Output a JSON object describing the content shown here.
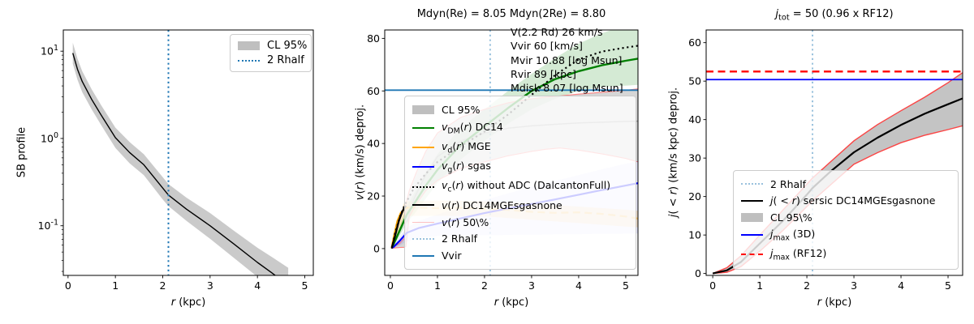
{
  "figure": {
    "background": "#ffffff"
  },
  "chart_data": [
    {
      "panel": "sb-profile-panel",
      "type": "line",
      "title": "",
      "xlabel": "*r* (kpc)",
      "ylabel": "SB profile",
      "xlim": [
        -0.1,
        5.18
      ],
      "ylim": [
        0.027,
        17.5
      ],
      "yscale": "log",
      "xticks": [
        0,
        1,
        2,
        3,
        4,
        5
      ],
      "yticks": [
        {
          "v": 10,
          "label": "10^{1}"
        },
        {
          "v": 1,
          "label": "10^{0}"
        },
        {
          "v": 0.1,
          "label": "10^{-1}"
        }
      ],
      "grid": false,
      "vlines": [
        {
          "name": "two-rhalf-line",
          "x": 2.12,
          "color": "#1f77b4",
          "dash": "dotted",
          "width": 2,
          "opacity": 1
        }
      ],
      "hlines": [],
      "bands": [
        {
          "name": "cl95-band",
          "color": "#8a8a8a",
          "opacity": 0.45,
          "x": [
            0.1,
            0.2,
            0.3,
            0.5,
            0.7,
            1.0,
            1.3,
            1.6,
            2.0,
            2.12,
            2.5,
            3.0,
            3.5,
            4.0,
            4.3,
            4.65
          ],
          "upper": [
            12.5,
            8.2,
            5.9,
            3.65,
            2.4,
            1.33,
            0.91,
            0.66,
            0.36,
            0.3,
            0.21,
            0.14,
            0.088,
            0.056,
            0.044,
            0.033
          ],
          "lower": [
            7.2,
            4.7,
            3.4,
            2.15,
            1.42,
            0.78,
            0.52,
            0.38,
            0.2,
            0.168,
            0.114,
            0.071,
            0.043,
            0.026,
            0.019,
            0.014
          ]
        }
      ],
      "series": [
        {
          "name": "sb-profile-line",
          "color": "#000000",
          "width": 1.4,
          "dash": "solid",
          "opacity": 1,
          "x": [
            0.1,
            0.2,
            0.3,
            0.5,
            0.7,
            1.0,
            1.3,
            1.6,
            2.0,
            2.12,
            2.5,
            3.0,
            3.5,
            4.0,
            4.3,
            4.5
          ],
          "y": [
            9.5,
            6.2,
            4.5,
            2.8,
            1.85,
            1.02,
            0.69,
            0.5,
            0.27,
            0.225,
            0.155,
            0.1,
            0.062,
            0.038,
            0.029,
            0.024
          ]
        }
      ],
      "legend_items": [
        {
          "label": "CL 95%",
          "swatch": "patch",
          "color": "#bfbfbf",
          "opacity": 1
        },
        {
          "label": "2 Rhalf",
          "swatch": "dotted",
          "color": "#1f77b4",
          "opacity": 1
        }
      ],
      "annotations": []
    },
    {
      "panel": "velocity-panel",
      "type": "line",
      "title": "Mdyn(Re) = 8.05  Mdyn(2Re) = 8.80",
      "xlabel": "*r* (kpc)",
      "ylabel": "*v*(*r*) (km/s) deproj.",
      "xlim": [
        -0.12,
        5.26
      ],
      "ylim": [
        -10.2,
        83.2
      ],
      "yscale": "linear",
      "xticks": [
        0,
        1,
        2,
        3,
        4,
        5
      ],
      "yticks": [
        {
          "v": 0,
          "label": "0"
        },
        {
          "v": 20,
          "label": "20"
        },
        {
          "v": 40,
          "label": "40"
        },
        {
          "v": 60,
          "label": "60"
        },
        {
          "v": 80,
          "label": "80"
        }
      ],
      "grid": false,
      "vlines": [
        {
          "name": "two-rhalf-line",
          "x": 2.12,
          "color": "#1f77b4",
          "dash": "dotted",
          "width": 2,
          "opacity": 0.45
        }
      ],
      "hlines": [
        {
          "name": "vvir-line",
          "y": 60.3,
          "color": "#1f77b4",
          "dash": "solid",
          "width": 1.8,
          "opacity": 1
        }
      ],
      "bands": [
        {
          "name": "vdm-dc14-band",
          "color": "#008000",
          "opacity": 0.17,
          "x": [
            0.05,
            0.2,
            0.35,
            0.5,
            0.75,
            1,
            1.5,
            2,
            2.5,
            3,
            3.5,
            4,
            4.5,
            5,
            5.26
          ],
          "upper": [
            2,
            9,
            16,
            21,
            29,
            36,
            46,
            53,
            60,
            66.5,
            72.5,
            78,
            82,
            85,
            86.5
          ],
          "lower": [
            0.5,
            5,
            10,
            13,
            19,
            25,
            34,
            41,
            47.5,
            53,
            57,
            60,
            61.5,
            62,
            62.3
          ]
        },
        {
          "name": "cl95-band",
          "color": "#808080",
          "opacity": 0.32,
          "edge_color": "#ff7777",
          "edge_width": 1.1,
          "x": [
            0.05,
            0.2,
            0.3,
            0.33,
            0.4,
            0.55,
            0.75,
            1,
            1.5,
            2,
            2.5,
            3,
            3.3,
            3.6,
            4,
            4.5,
            5,
            5.26
          ],
          "upper": [
            0.5,
            2,
            4,
            17,
            22,
            29,
            37,
            44,
            50,
            53,
            55.5,
            57,
            57.6,
            58.1,
            58.8,
            59.5,
            60.2,
            60.8
          ],
          "lower": [
            0.2,
            0.4,
            0.5,
            0.8,
            12,
            17,
            22,
            26,
            30.5,
            33,
            35.3,
            37,
            37.8,
            38.3,
            37.5,
            36,
            34.3,
            33
          ]
        },
        {
          "name": "vg-sgas-band",
          "color": "#5555ee",
          "opacity": 0.13,
          "x": [
            0.05,
            0.2,
            0.35,
            0.6,
            1,
            1.5,
            2,
            2.5,
            3,
            3.5,
            4,
            4.5,
            5,
            5.26
          ],
          "upper": [
            0.8,
            4.5,
            8,
            10.5,
            13,
            15.8,
            18.5,
            21,
            23.5,
            25.8,
            28,
            30.2,
            32.3,
            33.3
          ],
          "lower": [
            0,
            1.2,
            2.8,
            4,
            4.8,
            5,
            5.1,
            5.2,
            5.3,
            5.4,
            5.5,
            5.6,
            5.7,
            5.8
          ]
        },
        {
          "name": "vd-mge-band",
          "color": "#ffa500",
          "opacity": 0.22,
          "x": [
            0.03,
            0.3,
            1,
            2,
            3,
            4,
            5,
            5.26
          ],
          "upper": [
            1.5,
            18,
            18.3,
            18,
            17,
            16,
            14.8,
            14.4
          ],
          "lower": [
            0,
            12.4,
            12.5,
            12.3,
            11,
            9.7,
            8.4,
            8.1
          ]
        }
      ],
      "series": [
        {
          "name": "v-50pct-median-line",
          "color": "#999999",
          "width": 1.5,
          "dash": "solid",
          "opacity": 0.85,
          "x": [
            0.35,
            0.5,
            0.75,
            1,
            1.5,
            2,
            2.5,
            3,
            3.5,
            4,
            4.5,
            5,
            5.26
          ],
          "y": [
            10,
            19,
            28,
            35,
            41,
            44,
            45.8,
            46.7,
            47.3,
            47.8,
            48.1,
            48.4,
            48.5
          ]
        },
        {
          "name": "vg-sgas-line",
          "color": "#0000ff",
          "width": 2.2,
          "dash": "solid",
          "opacity": 1,
          "x": [
            0.05,
            0.2,
            0.35,
            0.6,
            1,
            1.5,
            2,
            2.5,
            3,
            3.5,
            4,
            4.5,
            5,
            5.26
          ],
          "y": [
            0.3,
            3,
            6,
            7.8,
            9.5,
            11.5,
            13.5,
            15.3,
            17,
            18.7,
            20.5,
            22.3,
            24,
            24.9
          ]
        },
        {
          "name": "vd-mge-line",
          "color": "#ffa500",
          "width": 2.4,
          "dash": "solid",
          "opacity": 1,
          "x": [
            0.03,
            0.08,
            0.15,
            0.22,
            0.3,
            0.38
          ],
          "y": [
            0.5,
            5,
            10.5,
            13.5,
            15.2,
            15.7
          ]
        },
        {
          "name": "vd-mge-extrapolation-line",
          "color": "#ffa500",
          "width": 2.2,
          "dash": "dashed",
          "opacity": 0.45,
          "x": [
            0.38,
            1,
            1.5,
            2,
            2.5,
            3,
            3.5,
            4,
            4.5,
            5,
            5.26
          ],
          "y": [
            15.7,
            15.4,
            15.5,
            15.2,
            14.7,
            14,
            13.6,
            13.8,
            13.2,
            12.2,
            11.4
          ]
        },
        {
          "name": "vdm-dc14-line",
          "color": "#008000",
          "width": 2.4,
          "dash": "solid",
          "opacity": 1,
          "x": [
            0.05,
            0.2,
            0.35,
            0.5,
            0.75,
            1,
            1.5,
            2,
            2.5,
            3,
            3.5,
            4,
            4.5,
            5,
            5.26
          ],
          "y": [
            1,
            7,
            13,
            17,
            24,
            30,
            39.5,
            46.5,
            53.5,
            60,
            64.5,
            67.5,
            69.8,
            71.5,
            72.3
          ]
        },
        {
          "name": "vc-no-adc-line",
          "color": "#000000",
          "width": 2.1,
          "dash": "dotted",
          "opacity": 1,
          "x": [
            0.03,
            0.1,
            0.2,
            0.3,
            0.5,
            0.75,
            1,
            1.5,
            2,
            2.5,
            3,
            3.5,
            4,
            4.5,
            5,
            5.26
          ],
          "y": [
            0,
            6,
            12,
            16.5,
            23,
            28.5,
            33,
            39,
            44.5,
            51,
            58.5,
            66,
            72,
            75,
            76.5,
            77.2
          ]
        },
        {
          "name": "v-best-fit-line",
          "color": "#000000",
          "width": 2.3,
          "dash": "solid",
          "opacity": 1,
          "x": [
            0.03,
            0.08,
            0.13,
            0.18,
            0.23,
            0.28,
            0.33
          ],
          "y": [
            0.3,
            3.5,
            7,
            10.5,
            13,
            15,
            16.3
          ]
        }
      ],
      "legend_items": [
        {
          "label": "CL 95%",
          "swatch": "patch",
          "color": "#bfbfbf",
          "opacity": 1
        },
        {
          "label": "*v*_{DM}(*r*) DC14",
          "swatch": "line",
          "color": "#008000",
          "opacity": 1
        },
        {
          "label": "*v*_{d}(*r*) MGE",
          "swatch": "line",
          "color": "#ffa500",
          "opacity": 1
        },
        {
          "label": "*v*_{g}(*r*) sgas",
          "swatch": "line",
          "color": "#0000ff",
          "opacity": 1
        },
        {
          "label": "*v*_{c}(*r*) without ADC (DalcantonFull)",
          "swatch": "dotted",
          "color": "#000000",
          "opacity": 1
        },
        {
          "label": "*v*(*r*) DC14MGEsgasnone",
          "swatch": "line",
          "color": "#000000",
          "opacity": 1
        },
        {
          "label": "*v*(*r*) 50\\%",
          "swatch": "thin",
          "color": "#ff9999",
          "opacity": 0.6
        },
        {
          "label": "2 Rhalf",
          "swatch": "dotted",
          "color": "#1f77b4",
          "opacity": 0.45
        },
        {
          "label": "Vvir",
          "swatch": "line",
          "color": "#1f77b4",
          "opacity": 1
        }
      ],
      "annotations": [
        "V(2.2 Rd) 26 km/s",
        "Vvir 60 [km/s]",
        "Mvir 10.88 [log Msun]",
        "Rvir 89 [kpc]",
        "Mdisk 8.07 [log Msun]"
      ]
    },
    {
      "panel": "angular-momentum-panel",
      "type": "line",
      "title": "*j*_{tot} = 50 (0.96 x RF12)",
      "xlabel": "*r* (kpc)",
      "ylabel": "*j*( < *r*) (km/s kpc) deproj.",
      "xlim": [
        -0.14,
        5.31
      ],
      "ylim": [
        -0.5,
        63.3
      ],
      "yscale": "linear",
      "xticks": [
        0,
        1,
        2,
        3,
        4,
        5
      ],
      "yticks": [
        {
          "v": 0,
          "label": "0"
        },
        {
          "v": 10,
          "label": "10"
        },
        {
          "v": 20,
          "label": "20"
        },
        {
          "v": 30,
          "label": "30"
        },
        {
          "v": 40,
          "label": "40"
        },
        {
          "v": 50,
          "label": "50"
        },
        {
          "v": 60,
          "label": "60"
        }
      ],
      "grid": false,
      "vlines": [
        {
          "name": "two-rhalf-line",
          "x": 2.12,
          "color": "#1f77b4",
          "dash": "dotted",
          "width": 2,
          "opacity": 0.45
        }
      ],
      "hlines": [
        {
          "name": "jmax-3d-line",
          "y": 50.4,
          "color": "#0000ff",
          "dash": "solid",
          "width": 1.8,
          "opacity": 1
        },
        {
          "name": "jmax-rf12-line",
          "y": 52.5,
          "color": "#ff0000",
          "dash": "dashed",
          "width": 2.4,
          "opacity": 1
        }
      ],
      "bands": [
        {
          "name": "cl95-band",
          "color": "#8a8a8a",
          "opacity": 0.5,
          "edge_color": "#ff3333",
          "edge_width": 1.4,
          "x": [
            0,
            0.3,
            0.6,
            1,
            1.5,
            2,
            2.12,
            2.5,
            3,
            3.5,
            4,
            4.5,
            5,
            5.31
          ],
          "upper": [
            0,
            1.5,
            4.6,
            10,
            16.6,
            23.2,
            24.8,
            29,
            34.5,
            38.7,
            42.3,
            45.8,
            49.6,
            52.2
          ],
          "lower": [
            0,
            0.3,
            1.8,
            5.8,
            11.3,
            17.4,
            18.9,
            23,
            28.4,
            31.4,
            34,
            35.9,
            37.4,
            38.4
          ]
        }
      ],
      "series": [
        {
          "name": "j-cumulative-line",
          "color": "#000000",
          "width": 2.2,
          "dash": "solid",
          "opacity": 1,
          "x": [
            0,
            0.3,
            0.6,
            1,
            1.5,
            2,
            2.12,
            2.5,
            3,
            3.5,
            4,
            4.5,
            5,
            5.31
          ],
          "y": [
            0,
            0.8,
            3,
            7.8,
            13.8,
            20.5,
            22.2,
            26.5,
            31.5,
            35.3,
            38.6,
            41.5,
            44,
            45.5
          ]
        }
      ],
      "legend_items": [
        {
          "label": "2 Rhalf",
          "swatch": "dotted",
          "color": "#1f77b4",
          "opacity": 0.45
        },
        {
          "label": "*j*( < *r*) sersic DC14MGEsgasnone",
          "swatch": "line",
          "color": "#000000",
          "opacity": 1
        },
        {
          "label": "CL 95\\%",
          "swatch": "patch",
          "color": "#bfbfbf",
          "opacity": 1
        },
        {
          "label": "*j*_{max} (3D)",
          "swatch": "line",
          "color": "#0000ff",
          "opacity": 1
        },
        {
          "label": "*j*_{max} (RF12)",
          "swatch": "dashed",
          "color": "#ff0000",
          "opacity": 1
        }
      ],
      "annotations": []
    }
  ]
}
